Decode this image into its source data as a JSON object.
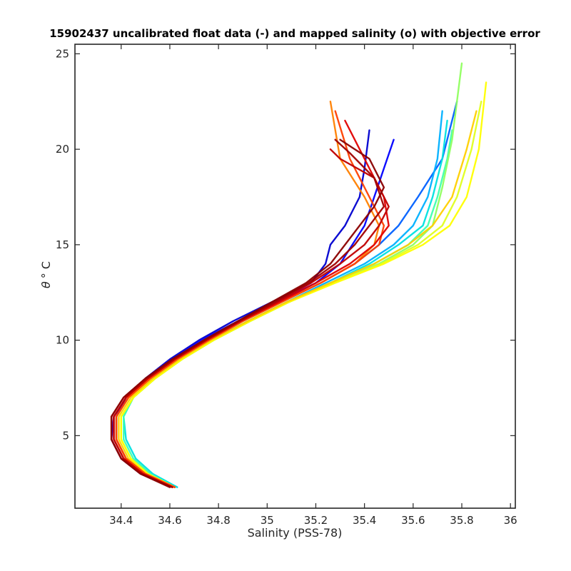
{
  "chart_data": {
    "type": "line",
    "title": "15902437 uncalibrated float data (-) and mapped salinity (o) with objective error",
    "xlabel": "Salinity (PSS-78)",
    "ylabel_symbol": "θ",
    "ylabel_unit": "° C",
    "xlim": [
      34.21,
      36.02
    ],
    "ylim": [
      1.2,
      25.5
    ],
    "xticks": [
      "34.4",
      "34.6",
      "34.8",
      "35",
      "35.2",
      "35.4",
      "35.6",
      "35.8",
      "36"
    ],
    "yticks": [
      "5",
      "10",
      "15",
      "20",
      "25"
    ],
    "grid": false,
    "legend": "none",
    "colormap": "jet",
    "colors": [
      "#00008f",
      "#0000ff",
      "#0066ff",
      "#00ccff",
      "#33ffcc",
      "#99ff66",
      "#ffff00",
      "#ffcc00",
      "#ff6600",
      "#ff0000",
      "#a00000"
    ],
    "series": [
      {
        "color": "#0000d0",
        "x": [
          34.62,
          34.5,
          34.42,
          34.38,
          34.38,
          34.42,
          34.5,
          34.6,
          34.72,
          34.86,
          35.02,
          35.18,
          35.24,
          35.26,
          35.32,
          35.38,
          35.4,
          35.42
        ],
        "y": [
          2.3,
          3,
          3.8,
          4.8,
          6,
          7,
          8,
          9,
          10,
          11,
          12,
          13,
          14,
          15,
          16,
          17.5,
          19,
          21
        ]
      },
      {
        "color": "#0000ff",
        "x": [
          34.62,
          34.48,
          34.4,
          34.36,
          34.37,
          34.42,
          34.5,
          34.61,
          34.73,
          34.88,
          35.04,
          35.2,
          35.3,
          35.35,
          35.4,
          35.44,
          35.48,
          35.52
        ],
        "y": [
          2.3,
          3,
          3.8,
          4.8,
          6,
          7,
          8,
          9,
          10,
          11,
          12,
          13,
          14,
          15,
          16,
          17.5,
          19,
          20.5
        ]
      },
      {
        "color": "#0060ff",
        "x": [
          34.62,
          34.5,
          34.42,
          34.38,
          34.38,
          34.43,
          34.52,
          34.63,
          34.76,
          34.9,
          35.06,
          35.22,
          35.36,
          35.46,
          35.54,
          35.62,
          35.72,
          35.78
        ],
        "y": [
          2.3,
          3,
          3.8,
          4.8,
          6,
          7,
          8,
          9,
          10,
          11,
          12,
          13,
          14,
          15,
          16,
          17.5,
          19.5,
          22.5
        ]
      },
      {
        "color": "#00b0ff",
        "x": [
          34.63,
          34.52,
          34.44,
          34.4,
          34.4,
          34.45,
          34.53,
          34.64,
          34.77,
          34.92,
          35.08,
          35.24,
          35.4,
          35.52,
          35.6,
          35.66,
          35.7,
          35.72
        ],
        "y": [
          2.3,
          3,
          3.8,
          4.8,
          6,
          7,
          8,
          9,
          10,
          11,
          12,
          13,
          14,
          15,
          16,
          17.5,
          19.5,
          22
        ]
      },
      {
        "color": "#00e0e0",
        "x": [
          34.63,
          34.53,
          34.46,
          34.42,
          34.41,
          34.45,
          34.54,
          34.65,
          34.78,
          34.93,
          35.09,
          35.26,
          35.42,
          35.54,
          35.64,
          35.68,
          35.72,
          35.74
        ],
        "y": [
          2.3,
          3,
          3.8,
          4.8,
          6,
          7,
          8,
          9,
          10,
          11,
          12,
          13,
          14,
          15,
          16,
          17.5,
          19.5,
          21.5
        ]
      },
      {
        "color": "#40ffb0",
        "x": [
          34.62,
          34.52,
          34.45,
          34.41,
          34.41,
          34.45,
          34.54,
          34.65,
          34.78,
          34.93,
          35.09,
          35.26,
          35.44,
          35.58,
          35.66,
          35.7,
          35.74,
          35.76
        ],
        "y": [
          2.3,
          3,
          3.8,
          4.8,
          6,
          7,
          8,
          9,
          10,
          11,
          12,
          13,
          14,
          15,
          16,
          17.5,
          19.5,
          21
        ]
      },
      {
        "color": "#90ff60",
        "x": [
          34.62,
          34.51,
          34.44,
          34.4,
          34.4,
          34.45,
          34.54,
          34.65,
          34.78,
          34.93,
          35.09,
          35.27,
          35.46,
          35.6,
          35.68,
          35.72,
          35.76,
          35.8
        ],
        "y": [
          2.3,
          3,
          3.8,
          4.8,
          6,
          7,
          8,
          9,
          10,
          11,
          12,
          13,
          14,
          15,
          16,
          18,
          20.5,
          24.5
        ]
      },
      {
        "color": "#e0ff20",
        "x": [
          34.62,
          34.51,
          34.44,
          34.4,
          34.4,
          34.45,
          34.54,
          34.65,
          34.78,
          34.93,
          35.09,
          35.27,
          35.47,
          35.62,
          35.72,
          35.78,
          35.84,
          35.88
        ],
        "y": [
          2.3,
          3,
          3.8,
          4.8,
          6,
          7,
          8,
          9,
          10,
          11,
          12,
          13,
          14,
          15,
          16,
          17.5,
          20,
          22.5
        ]
      },
      {
        "color": "#ffff00",
        "x": [
          34.62,
          34.51,
          34.44,
          34.4,
          34.4,
          34.45,
          34.54,
          34.65,
          34.78,
          34.93,
          35.09,
          35.28,
          35.48,
          35.64,
          35.75,
          35.82,
          35.87,
          35.9
        ],
        "y": [
          2.3,
          3,
          3.8,
          4.8,
          6,
          7,
          8,
          9,
          10,
          11,
          12,
          13,
          14,
          15,
          16,
          17.5,
          20,
          23.5
        ]
      },
      {
        "color": "#ffd000",
        "x": [
          34.62,
          34.5,
          34.43,
          34.39,
          34.39,
          34.44,
          34.53,
          34.64,
          34.77,
          34.92,
          35.08,
          35.26,
          35.44,
          35.58,
          35.68,
          35.76,
          35.82,
          35.86
        ],
        "y": [
          2.3,
          3,
          3.8,
          4.8,
          6,
          7,
          8,
          9,
          10,
          11,
          12,
          13,
          14,
          15,
          16,
          17.5,
          20,
          22
        ]
      },
      {
        "color": "#ff8000",
        "x": [
          34.62,
          34.5,
          34.42,
          34.38,
          34.38,
          34.43,
          34.52,
          34.63,
          34.76,
          34.9,
          35.06,
          35.22,
          35.36,
          35.44,
          35.46,
          35.4,
          35.3,
          35.26
        ],
        "y": [
          2.3,
          3,
          3.8,
          4.8,
          6,
          7,
          8,
          9,
          10,
          11,
          12,
          13,
          14,
          15,
          16,
          17.5,
          19.5,
          22.5
        ]
      },
      {
        "color": "#ff4000",
        "x": [
          34.62,
          34.5,
          34.42,
          34.38,
          34.38,
          34.43,
          34.52,
          34.63,
          34.76,
          34.9,
          35.06,
          35.22,
          35.36,
          35.46,
          35.48,
          35.42,
          35.34,
          35.28
        ],
        "y": [
          2.3,
          3,
          3.8,
          4.8,
          6,
          7,
          8,
          9,
          10,
          11,
          12,
          13,
          14,
          15,
          16,
          17.5,
          19.5,
          22
        ]
      },
      {
        "color": "#e00000",
        "x": [
          34.61,
          34.49,
          34.41,
          34.37,
          34.37,
          34.42,
          34.51,
          34.62,
          34.75,
          34.89,
          35.05,
          35.2,
          35.34,
          35.44,
          35.5,
          35.48,
          35.4,
          35.32
        ],
        "y": [
          2.3,
          3,
          3.8,
          4.8,
          6,
          7,
          8,
          9,
          10,
          11,
          12,
          13,
          14,
          15,
          16,
          17.5,
          19.5,
          21.5
        ]
      },
      {
        "color": "#c00000",
        "x": [
          34.61,
          34.49,
          34.41,
          34.37,
          34.37,
          34.42,
          34.51,
          34.62,
          34.75,
          34.89,
          35.04,
          35.18,
          35.3,
          35.4,
          35.46,
          35.5,
          35.44,
          35.3,
          35.26
        ],
        "y": [
          2.3,
          3,
          3.8,
          4.8,
          6,
          7,
          8,
          9,
          10,
          11,
          12,
          13,
          14,
          15,
          16,
          17,
          18.5,
          19.5,
          20
        ]
      },
      {
        "color": "#a00000",
        "x": [
          34.61,
          34.48,
          34.4,
          34.36,
          34.36,
          34.41,
          34.5,
          34.61,
          34.74,
          34.88,
          35.03,
          35.17,
          35.28,
          35.36,
          35.42,
          35.48,
          35.44,
          35.34,
          35.28
        ],
        "y": [
          2.3,
          3,
          3.8,
          4.8,
          6,
          7,
          8,
          9,
          10,
          11,
          12,
          13,
          14,
          15,
          16,
          17,
          18.5,
          19.8,
          20.5
        ]
      },
      {
        "color": "#8b0000",
        "x": [
          34.6,
          34.48,
          34.4,
          34.36,
          34.36,
          34.41,
          34.5,
          34.61,
          34.74,
          34.88,
          35.02,
          35.16,
          35.26,
          35.32,
          35.38,
          35.44,
          35.48,
          35.42,
          35.3
        ],
        "y": [
          2.3,
          3,
          3.8,
          4.8,
          6,
          7,
          8,
          9,
          10,
          11,
          12,
          13,
          14,
          15,
          16,
          17,
          18,
          19.5,
          20.5
        ]
      }
    ]
  }
}
